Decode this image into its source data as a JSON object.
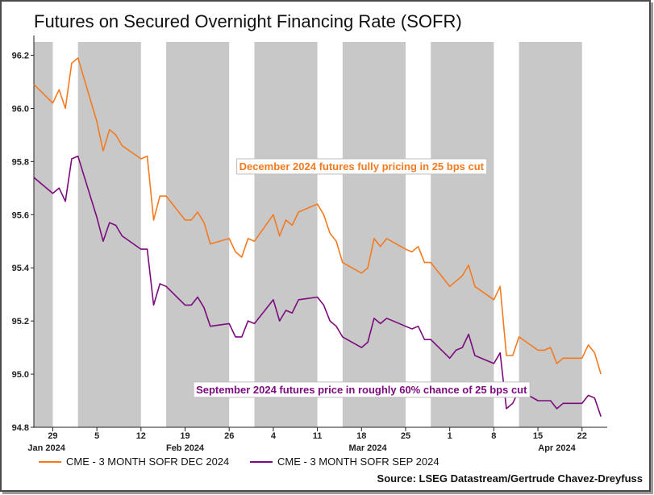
{
  "chart_data": {
    "type": "line",
    "title": "Futures on Secured Overnight Financing Rate (SOFR)",
    "ylim": [
      94.8,
      96.25
    ],
    "yticks": [
      "96.2",
      "96.0",
      "95.8",
      "95.6",
      "95.4",
      "95.2",
      "95.0",
      "94.8"
    ],
    "ytick_values": [
      96.2,
      96.0,
      95.8,
      95.6,
      95.4,
      95.2,
      95.0,
      94.8
    ],
    "x_start": "2024-01-26",
    "x_end": "2024-04-26",
    "xtick_labels": [
      {
        "label": "29",
        "date": "2024-01-29"
      },
      {
        "label": "5",
        "date": "2024-02-05"
      },
      {
        "label": "12",
        "date": "2024-02-12"
      },
      {
        "label": "19",
        "date": "2024-02-19"
      },
      {
        "label": "26",
        "date": "2024-02-26"
      },
      {
        "label": "4",
        "date": "2024-03-04"
      },
      {
        "label": "11",
        "date": "2024-03-11"
      },
      {
        "label": "18",
        "date": "2024-03-18"
      },
      {
        "label": "25",
        "date": "2024-03-25"
      },
      {
        "label": "1",
        "date": "2024-04-01"
      },
      {
        "label": "8",
        "date": "2024-04-08"
      },
      {
        "label": "15",
        "date": "2024-04-15"
      },
      {
        "label": "22",
        "date": "2024-04-22"
      }
    ],
    "month_labels": [
      {
        "label": "Jan 2024",
        "date": "2024-01-28"
      },
      {
        "label": "Feb 2024",
        "date": "2024-02-19"
      },
      {
        "label": "Mar 2024",
        "date": "2024-03-19"
      },
      {
        "label": "Apr 2024",
        "date": "2024-04-18"
      }
    ],
    "shaded_weeks": [
      [
        "2024-01-26",
        "2024-01-29"
      ],
      [
        "2024-02-02",
        "2024-02-12"
      ],
      [
        "2024-02-16",
        "2024-02-26"
      ],
      [
        "2024-03-01",
        "2024-03-11"
      ],
      [
        "2024-03-15",
        "2024-03-25"
      ],
      [
        "2024-03-29",
        "2024-04-08"
      ],
      [
        "2024-04-12",
        "2024-04-22"
      ]
    ],
    "grid": false,
    "legend_position": "bottom",
    "series": [
      {
        "name": "CME - 3 MONTH SOFR DEC 2024",
        "color": "#f47a20",
        "points": [
          [
            "2024-01-26",
            96.09
          ],
          [
            "2024-01-29",
            96.02
          ],
          [
            "2024-01-30",
            96.07
          ],
          [
            "2024-01-31",
            96.0
          ],
          [
            "2024-02-01",
            96.17
          ],
          [
            "2024-02-02",
            96.19
          ],
          [
            "2024-02-05",
            95.95
          ],
          [
            "2024-02-06",
            95.84
          ],
          [
            "2024-02-07",
            95.92
          ],
          [
            "2024-02-08",
            95.9
          ],
          [
            "2024-02-09",
            95.86
          ],
          [
            "2024-02-12",
            95.81
          ],
          [
            "2024-02-13",
            95.82
          ],
          [
            "2024-02-14",
            95.58
          ],
          [
            "2024-02-15",
            95.67
          ],
          [
            "2024-02-16",
            95.67
          ],
          [
            "2024-02-19",
            95.58
          ],
          [
            "2024-02-20",
            95.58
          ],
          [
            "2024-02-21",
            95.61
          ],
          [
            "2024-02-22",
            95.57
          ],
          [
            "2024-02-23",
            95.49
          ],
          [
            "2024-02-26",
            95.51
          ],
          [
            "2024-02-27",
            95.46
          ],
          [
            "2024-02-28",
            95.44
          ],
          [
            "2024-02-29",
            95.51
          ],
          [
            "2024-03-01",
            95.5
          ],
          [
            "2024-03-04",
            95.6
          ],
          [
            "2024-03-05",
            95.52
          ],
          [
            "2024-03-06",
            95.58
          ],
          [
            "2024-03-07",
            95.56
          ],
          [
            "2024-03-08",
            95.61
          ],
          [
            "2024-03-11",
            95.64
          ],
          [
            "2024-03-12",
            95.6
          ],
          [
            "2024-03-13",
            95.53
          ],
          [
            "2024-03-14",
            95.5
          ],
          [
            "2024-03-15",
            95.42
          ],
          [
            "2024-03-18",
            95.38
          ],
          [
            "2024-03-19",
            95.4
          ],
          [
            "2024-03-20",
            95.51
          ],
          [
            "2024-03-21",
            95.48
          ],
          [
            "2024-03-22",
            95.51
          ],
          [
            "2024-03-25",
            95.47
          ],
          [
            "2024-03-26",
            95.46
          ],
          [
            "2024-03-27",
            95.48
          ],
          [
            "2024-03-28",
            95.42
          ],
          [
            "2024-03-29",
            95.42
          ],
          [
            "2024-04-01",
            95.33
          ],
          [
            "2024-04-02",
            95.35
          ],
          [
            "2024-04-03",
            95.37
          ],
          [
            "2024-04-04",
            95.41
          ],
          [
            "2024-04-05",
            95.33
          ],
          [
            "2024-04-08",
            95.28
          ],
          [
            "2024-04-09",
            95.33
          ],
          [
            "2024-04-10",
            95.07
          ],
          [
            "2024-04-11",
            95.07
          ],
          [
            "2024-04-12",
            95.14
          ],
          [
            "2024-04-15",
            95.09
          ],
          [
            "2024-04-16",
            95.09
          ],
          [
            "2024-04-17",
            95.1
          ],
          [
            "2024-04-18",
            95.04
          ],
          [
            "2024-04-19",
            95.06
          ],
          [
            "2024-04-22",
            95.06
          ],
          [
            "2024-04-23",
            95.11
          ],
          [
            "2024-04-24",
            95.08
          ],
          [
            "2024-04-25",
            95.0
          ]
        ]
      },
      {
        "name": "CME - 3 MONTH SOFR SEP 2024",
        "color": "#7b0a7e",
        "points": [
          [
            "2024-01-26",
            95.74
          ],
          [
            "2024-01-29",
            95.68
          ],
          [
            "2024-01-30",
            95.7
          ],
          [
            "2024-01-31",
            95.65
          ],
          [
            "2024-02-01",
            95.81
          ],
          [
            "2024-02-02",
            95.82
          ],
          [
            "2024-02-05",
            95.59
          ],
          [
            "2024-02-06",
            95.5
          ],
          [
            "2024-02-07",
            95.57
          ],
          [
            "2024-02-08",
            95.56
          ],
          [
            "2024-02-09",
            95.52
          ],
          [
            "2024-02-12",
            95.47
          ],
          [
            "2024-02-13",
            95.47
          ],
          [
            "2024-02-14",
            95.26
          ],
          [
            "2024-02-15",
            95.34
          ],
          [
            "2024-02-16",
            95.33
          ],
          [
            "2024-02-19",
            95.26
          ],
          [
            "2024-02-20",
            95.26
          ],
          [
            "2024-02-21",
            95.29
          ],
          [
            "2024-02-22",
            95.25
          ],
          [
            "2024-02-23",
            95.18
          ],
          [
            "2024-02-26",
            95.19
          ],
          [
            "2024-02-27",
            95.14
          ],
          [
            "2024-02-28",
            95.14
          ],
          [
            "2024-02-29",
            95.2
          ],
          [
            "2024-03-01",
            95.19
          ],
          [
            "2024-03-04",
            95.28
          ],
          [
            "2024-03-05",
            95.2
          ],
          [
            "2024-03-06",
            95.24
          ],
          [
            "2024-03-07",
            95.23
          ],
          [
            "2024-03-08",
            95.28
          ],
          [
            "2024-03-11",
            95.29
          ],
          [
            "2024-03-12",
            95.26
          ],
          [
            "2024-03-13",
            95.2
          ],
          [
            "2024-03-14",
            95.18
          ],
          [
            "2024-03-15",
            95.14
          ],
          [
            "2024-03-18",
            95.1
          ],
          [
            "2024-03-19",
            95.12
          ],
          [
            "2024-03-20",
            95.21
          ],
          [
            "2024-03-21",
            95.19
          ],
          [
            "2024-03-22",
            95.21
          ],
          [
            "2024-03-25",
            95.18
          ],
          [
            "2024-03-26",
            95.17
          ],
          [
            "2024-03-27",
            95.18
          ],
          [
            "2024-03-28",
            95.13
          ],
          [
            "2024-03-29",
            95.13
          ],
          [
            "2024-04-01",
            95.06
          ],
          [
            "2024-04-02",
            95.09
          ],
          [
            "2024-04-03",
            95.1
          ],
          [
            "2024-04-04",
            95.15
          ],
          [
            "2024-04-05",
            95.07
          ],
          [
            "2024-04-08",
            95.04
          ],
          [
            "2024-04-09",
            95.08
          ],
          [
            "2024-04-10",
            94.87
          ],
          [
            "2024-04-11",
            94.89
          ],
          [
            "2024-04-12",
            94.94
          ],
          [
            "2024-04-15",
            94.9
          ],
          [
            "2024-04-16",
            94.9
          ],
          [
            "2024-04-17",
            94.9
          ],
          [
            "2024-04-18",
            94.87
          ],
          [
            "2024-04-19",
            94.89
          ],
          [
            "2024-04-22",
            94.89
          ],
          [
            "2024-04-23",
            94.92
          ],
          [
            "2024-04-24",
            94.91
          ],
          [
            "2024-04-25",
            94.84
          ]
        ]
      }
    ],
    "annotations": [
      {
        "text": "December 2024 futures fully pricing in 25 bps cut",
        "date": "2024-03-18",
        "y": 95.78,
        "color": "#f47a20"
      },
      {
        "text": "September 2024 futures price in roughly 60% chance of 25 bps cut",
        "date": "2024-03-18",
        "y": 94.94,
        "color": "#7b0a7e"
      }
    ],
    "source": "Source: LSEG Datastream/Gertrude Chavez-Dreyfuss"
  }
}
